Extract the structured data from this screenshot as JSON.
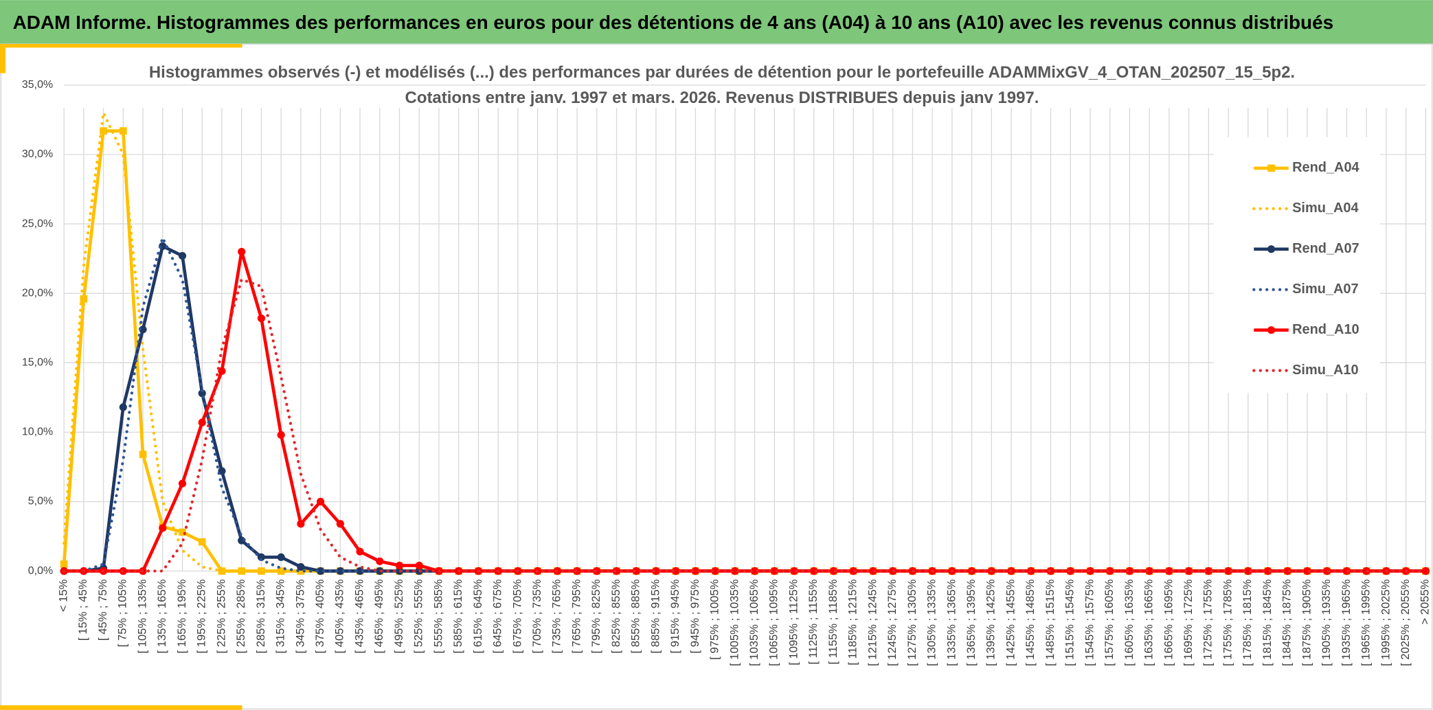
{
  "header": {
    "title": "ADAM Informe. Histogrammes des performances en euros pour des détentions de 4 ans (A04) à 10 ans (A10) avec les revenus connus distribués"
  },
  "chart_data": {
    "type": "line",
    "title": "Histogrammes observés (-) et modélisés (...) des performances par durées de détention pour le portefeuille ADAMMixGV_4_OTAN_202507_15_5p2.",
    "subtitle": "Cotations entre janv. 1997 et mars. 2026. Revenus DISTRIBUES depuis janv 1997.",
    "categories": [
      "< 15%",
      "[ 15% ; 45%",
      "[ 45% ; 75%",
      "[ 75% ; 105%",
      "[ 105% ; 135%",
      "[ 135% ; 165%",
      "[ 165% ; 195%",
      "[ 195% ; 225%",
      "[ 225% ; 255%",
      "[ 255% ; 285%",
      "[ 285% ; 315%",
      "[ 315% ; 345%",
      "[ 345% ; 375%",
      "[ 375% ; 405%",
      "[ 405% ; 435%",
      "[ 435% ; 465%",
      "[ 465% ; 495%",
      "[ 495% ; 525%",
      "[ 525% ; 555%",
      "[ 555% ; 585%",
      "[ 585% ; 615%",
      "[ 615% ; 645%",
      "[ 645% ; 675%",
      "[ 675% ; 705%",
      "[ 705% ; 735%",
      "[ 735% ; 765%",
      "[ 765% ; 795%",
      "[ 795% ; 825%",
      "[ 825% ; 855%",
      "[ 855% ; 885%",
      "[ 885% ; 915%",
      "[ 915% ; 945%",
      "[ 945% ; 975%",
      "[ 975% ; 1005%",
      "[ 1005% ; 1035%",
      "[ 1035% ; 1065%",
      "[ 1065% ; 1095%",
      "[ 1095% ; 1125%",
      "[ 1125% ; 1155%",
      "[ 1155% ; 1185%",
      "[ 1185% ; 1215%",
      "[ 1215% ; 1245%",
      "[ 1245% ; 1275%",
      "[ 1275% ; 1305%",
      "[ 1305% ; 1335%",
      "[ 1335% ; 1365%",
      "[ 1365% ; 1395%",
      "[ 1395% ; 1425%",
      "[ 1425% ; 1455%",
      "[ 1455% ; 1485%",
      "[ 1485% ; 1515%",
      "[ 1515% ; 1545%",
      "[ 1545% ; 1575%",
      "[ 1575% ; 1605%",
      "[ 1605% ; 1635%",
      "[ 1635% ; 1665%",
      "[ 1665% ; 1695%",
      "[ 1695% ; 1725%",
      "[ 1725% ; 1755%",
      "[ 1755% ; 1785%",
      "[ 1785% ; 1815%",
      "[ 1815% ; 1845%",
      "[ 1845% ; 1875%",
      "[ 1875% ; 1905%",
      "[ 1905% ; 1935%",
      "[ 1935% ; 1965%",
      "[ 1965% ; 1995%",
      "[ 1995% ; 2025%",
      "[ 2025% ; 2055%",
      "> 2055%"
    ],
    "series": [
      {
        "name": "Rend_A04",
        "color": "#ffc000",
        "style": "solid",
        "marker": "square",
        "values": [
          0.5,
          19.6,
          31.7,
          31.7,
          8.4,
          3.2,
          2.8,
          2.1,
          0,
          0,
          0,
          0,
          0,
          0,
          0,
          0,
          0,
          0,
          0,
          0,
          0,
          0,
          0,
          0,
          0,
          0,
          0,
          0,
          0,
          0,
          0,
          0,
          0,
          0,
          0,
          0,
          0,
          0,
          0,
          0,
          0,
          0,
          0,
          0,
          0,
          0,
          0,
          0,
          0,
          0,
          0,
          0,
          0,
          0,
          0,
          0,
          0,
          0,
          0,
          0,
          0,
          0,
          0,
          0,
          0,
          0,
          0,
          0,
          0,
          0
        ]
      },
      {
        "name": "Simu_A04",
        "color": "#ffc000",
        "style": "dotted",
        "marker": null,
        "values": [
          2.0,
          22,
          33.0,
          30,
          16,
          5,
          1.5,
          0.3,
          0,
          0,
          0,
          0,
          0,
          0,
          0,
          0,
          0,
          0,
          0,
          0,
          0,
          0,
          0,
          0,
          0,
          0,
          0,
          0,
          0,
          0,
          0,
          0,
          0,
          0,
          0,
          0,
          0,
          0,
          0,
          0,
          0,
          0,
          0,
          0,
          0,
          0,
          0,
          0,
          0,
          0,
          0,
          0,
          0,
          0,
          0,
          0,
          0,
          0,
          0,
          0,
          0,
          0,
          0,
          0,
          0,
          0,
          0,
          0,
          0,
          0
        ]
      },
      {
        "name": "Rend_A07",
        "color": "#1f3864",
        "style": "solid",
        "marker": "circle",
        "values": [
          0,
          0,
          0.2,
          11.8,
          17.4,
          23.4,
          22.7,
          12.8,
          7.2,
          2.2,
          1.0,
          1.0,
          0.3,
          0,
          0,
          0,
          0,
          0,
          0,
          0,
          0,
          0,
          0,
          0,
          0,
          0,
          0,
          0,
          0,
          0,
          0,
          0,
          0,
          0,
          0,
          0,
          0,
          0,
          0,
          0,
          0,
          0,
          0,
          0,
          0,
          0,
          0,
          0,
          0,
          0,
          0,
          0,
          0,
          0,
          0,
          0,
          0,
          0,
          0,
          0,
          0,
          0,
          0,
          0,
          0,
          0,
          0,
          0,
          0,
          0
        ]
      },
      {
        "name": "Simu_A07",
        "color": "#2f5597",
        "style": "dotted",
        "marker": null,
        "values": [
          0,
          0,
          0.5,
          8,
          19,
          24,
          21,
          13,
          6,
          2.5,
          0.8,
          0.2,
          0,
          0,
          0,
          0,
          0,
          0,
          0,
          0,
          0,
          0,
          0,
          0,
          0,
          0,
          0,
          0,
          0,
          0,
          0,
          0,
          0,
          0,
          0,
          0,
          0,
          0,
          0,
          0,
          0,
          0,
          0,
          0,
          0,
          0,
          0,
          0,
          0,
          0,
          0,
          0,
          0,
          0,
          0,
          0,
          0,
          0,
          0,
          0,
          0,
          0,
          0,
          0,
          0,
          0,
          0,
          0,
          0,
          0
        ]
      },
      {
        "name": "Rend_A10",
        "color": "#ff0000",
        "style": "solid",
        "marker": "circle",
        "values": [
          0,
          0,
          0,
          0,
          0,
          3.1,
          6.3,
          10.7,
          14.4,
          23.0,
          18.2,
          9.8,
          3.4,
          5.0,
          3.4,
          1.4,
          0.7,
          0.4,
          0.4,
          0,
          0,
          0,
          0,
          0,
          0,
          0,
          0,
          0,
          0,
          0,
          0,
          0,
          0,
          0,
          0,
          0,
          0,
          0,
          0,
          0,
          0,
          0,
          0,
          0,
          0,
          0,
          0,
          0,
          0,
          0,
          0,
          0,
          0,
          0,
          0,
          0,
          0,
          0,
          0,
          0,
          0,
          0,
          0,
          0,
          0,
          0,
          0,
          0,
          0,
          0
        ]
      },
      {
        "name": "Simu_A10",
        "color": "#e3262a",
        "style": "dotted",
        "marker": null,
        "values": [
          0,
          0,
          0,
          0,
          0,
          0,
          2,
          8,
          16,
          21,
          20.5,
          14,
          7,
          3,
          1,
          0.3,
          0,
          0,
          0,
          0,
          0,
          0,
          0,
          0,
          0,
          0,
          0,
          0,
          0,
          0,
          0,
          0,
          0,
          0,
          0,
          0,
          0,
          0,
          0,
          0,
          0,
          0,
          0,
          0,
          0,
          0,
          0,
          0,
          0,
          0,
          0,
          0,
          0,
          0,
          0,
          0,
          0,
          0,
          0,
          0,
          0,
          0,
          0,
          0,
          0,
          0,
          0,
          0,
          0,
          0
        ]
      }
    ],
    "ylim": [
      0,
      35
    ],
    "yticks": [
      {
        "value": 0,
        "label": "0,0%"
      },
      {
        "value": 5,
        "label": "5,0%"
      },
      {
        "value": 10,
        "label": "10,0%"
      },
      {
        "value": 15,
        "label": "15,0%"
      },
      {
        "value": 20,
        "label": "20,0%"
      },
      {
        "value": 25,
        "label": "25,0%"
      },
      {
        "value": 30,
        "label": "30,0%"
      },
      {
        "value": 35,
        "label": "35,0%"
      }
    ],
    "grid": true,
    "legend": "right"
  }
}
